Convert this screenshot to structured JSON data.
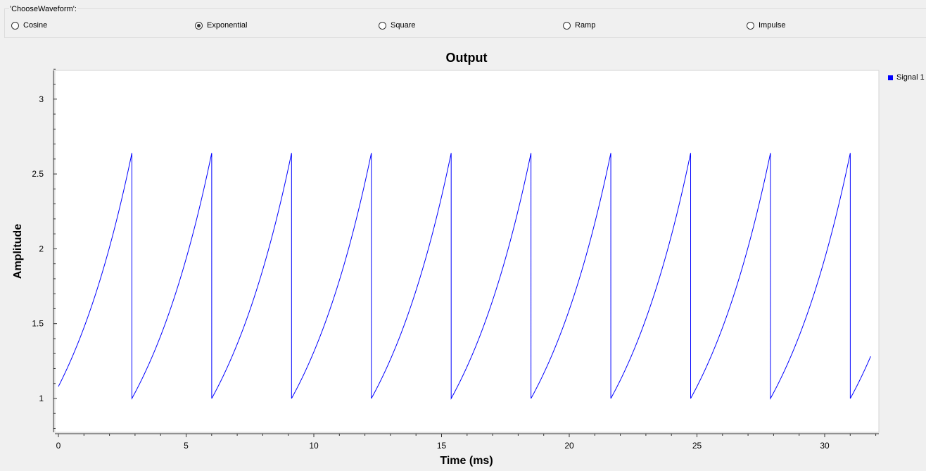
{
  "group": {
    "title": "'ChooseWaveform':",
    "options": [
      {
        "label": "Cosine",
        "checked": false
      },
      {
        "label": "Exponential",
        "checked": true
      },
      {
        "label": "Square",
        "checked": false
      },
      {
        "label": "Ramp",
        "checked": false
      },
      {
        "label": "Impulse",
        "checked": false
      }
    ]
  },
  "chart_data": {
    "type": "line",
    "title": "Output",
    "xlabel": "Time (ms)",
    "ylabel": "Amplitude",
    "xlim": [
      0,
      32
    ],
    "ylim": [
      0.8,
      3.2
    ],
    "x_ticks": [
      0,
      5,
      10,
      15,
      20,
      25,
      30
    ],
    "y_ticks": [
      1,
      1.5,
      2,
      2.5,
      3
    ],
    "x_tick_labels": [
      "0",
      "5",
      "10",
      "15",
      "20",
      "25",
      "30"
    ],
    "y_tick_labels": [
      "1",
      "1.5",
      "2",
      "2.5",
      "3"
    ],
    "legend_position": "top-right",
    "series": [
      {
        "name": "Signal 1",
        "color": "#0000ff",
        "waveform": "sawtooth-exponential",
        "period_ms": 3.125,
        "min": 1.0,
        "max": 2.64,
        "start_value": 1.08,
        "end_x": 31.8,
        "end_value": 1.36
      }
    ]
  }
}
